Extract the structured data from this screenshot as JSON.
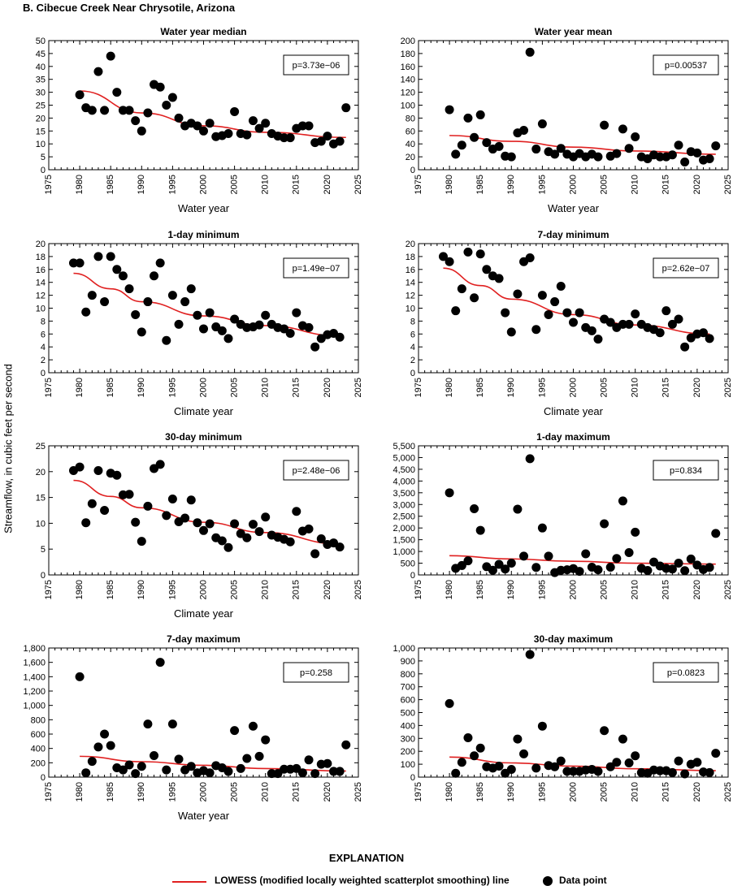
{
  "figure_title": "B. Cibecue Creek Near Chrysotile, Arizona",
  "shared_ylabel": "Streamflow, in cubic feet per second",
  "explanation": {
    "title": "EXPLANATION",
    "line_label": "LOWESS (modified locally weighted scatterplot smoothing) line",
    "point_label": "Data point",
    "line_color": "#e02020",
    "point_color": "#000000"
  },
  "chart_data": [
    {
      "type": "scatter",
      "title": "Water year median",
      "xlabel": "Water year",
      "ylabel": "",
      "xlim": [
        1975,
        2025
      ],
      "ylim": [
        0,
        50
      ],
      "xticks": [
        1975,
        1980,
        1985,
        1990,
        1995,
        2000,
        2005,
        2010,
        2015,
        2020,
        2025
      ],
      "yticks": [
        0,
        5,
        10,
        15,
        20,
        25,
        30,
        35,
        40,
        45,
        50
      ],
      "ytick_labels": [
        "0",
        "5",
        "10",
        "15",
        "20",
        "25",
        "30",
        "35",
        "40",
        "45",
        "50"
      ],
      "p_label": "p=3.73e−06",
      "points": {
        "x": [
          1980,
          1981,
          1982,
          1983,
          1984,
          1985,
          1986,
          1987,
          1988,
          1989,
          1990,
          1991,
          1992,
          1993,
          1994,
          1995,
          1996,
          1997,
          1998,
          1999,
          2000,
          2001,
          2002,
          2003,
          2004,
          2005,
          2006,
          2007,
          2008,
          2009,
          2010,
          2011,
          2012,
          2013,
          2014,
          2015,
          2016,
          2017,
          2018,
          2019,
          2020,
          2021,
          2022,
          2023
        ],
        "y": [
          29,
          24,
          23,
          38,
          23,
          44,
          30,
          23,
          23,
          19,
          15,
          22,
          33,
          32,
          25,
          28,
          20,
          17,
          18,
          17,
          15,
          18,
          12.8,
          13.2,
          14,
          22.5,
          14,
          13.5,
          19,
          16,
          18,
          14,
          13,
          12.4,
          12.4,
          16,
          17,
          17,
          10.5,
          11,
          13,
          10,
          11,
          24
        ]
      },
      "lowess": {
        "x": [
          1980,
          1990,
          2000,
          2010,
          2023
        ],
        "y": [
          30.5,
          22,
          17,
          14.5,
          12.5
        ]
      }
    },
    {
      "type": "scatter",
      "title": "Water year mean",
      "xlabel": "Water year",
      "ylabel": "",
      "xlim": [
        1975,
        2025
      ],
      "ylim": [
        0,
        200
      ],
      "xticks": [
        1975,
        1980,
        1985,
        1990,
        1995,
        2000,
        2005,
        2010,
        2015,
        2020,
        2025
      ],
      "yticks": [
        0,
        20,
        40,
        60,
        80,
        100,
        120,
        140,
        160,
        180,
        200
      ],
      "ytick_labels": [
        "0",
        "20",
        "40",
        "60",
        "80",
        "100",
        "120",
        "140",
        "160",
        "180",
        "200"
      ],
      "p_label": "p=0.00537",
      "points": {
        "x": [
          1980,
          1981,
          1982,
          1983,
          1984,
          1985,
          1986,
          1987,
          1988,
          1989,
          1990,
          1991,
          1992,
          1993,
          1994,
          1995,
          1996,
          1997,
          1998,
          1999,
          2000,
          2001,
          2002,
          2003,
          2004,
          2005,
          2006,
          2007,
          2008,
          2009,
          2010,
          2011,
          2012,
          2013,
          2014,
          2015,
          2016,
          2017,
          2018,
          2019,
          2020,
          2021,
          2022,
          2023
        ],
        "y": [
          93,
          24,
          38,
          80,
          50,
          85,
          42,
          32,
          36,
          21,
          20,
          57,
          61,
          182,
          32,
          71,
          28,
          24,
          33,
          24,
          20,
          25,
          20,
          24,
          20,
          69,
          21,
          25,
          63,
          33,
          51,
          20,
          17,
          23,
          20,
          20,
          23,
          38,
          12,
          28,
          26,
          15,
          17,
          37
        ]
      },
      "lowess": {
        "x": [
          1980,
          1990,
          2000,
          2010,
          2023
        ],
        "y": [
          53,
          44,
          35,
          29,
          24
        ]
      }
    },
    {
      "type": "scatter",
      "title": "1-day minimum",
      "xlabel": "Climate year",
      "ylabel": "",
      "xlim": [
        1975,
        2025
      ],
      "ylim": [
        0,
        20
      ],
      "xticks": [
        1975,
        1980,
        1985,
        1990,
        1995,
        2000,
        2005,
        2010,
        2015,
        2020,
        2025
      ],
      "yticks": [
        0,
        2,
        4,
        6,
        8,
        10,
        12,
        14,
        16,
        18,
        20
      ],
      "ytick_labels": [
        "0",
        "2",
        "4",
        "6",
        "8",
        "10",
        "12",
        "14",
        "16",
        "18",
        "20"
      ],
      "p_label": "p=1.49e−07",
      "points": {
        "x": [
          1979,
          1980,
          1981,
          1982,
          1983,
          1984,
          1985,
          1986,
          1987,
          1988,
          1989,
          1990,
          1991,
          1992,
          1993,
          1994,
          1995,
          1996,
          1997,
          1998,
          1999,
          2000,
          2001,
          2002,
          2003,
          2004,
          2005,
          2006,
          2007,
          2008,
          2009,
          2010,
          2011,
          2012,
          2013,
          2014,
          2015,
          2016,
          2017,
          2018,
          2019,
          2020,
          2021,
          2022
        ],
        "y": [
          17,
          17,
          9.4,
          12,
          18,
          11,
          18,
          16,
          15,
          13,
          9,
          6.3,
          11,
          15,
          17,
          5,
          12,
          7.5,
          11,
          13,
          8.9,
          6.8,
          9.3,
          7.1,
          6.5,
          5.3,
          8.3,
          7.5,
          7,
          7.1,
          7.4,
          8.9,
          7.5,
          7,
          6.8,
          6.1,
          9.3,
          7.3,
          7,
          4,
          5.3,
          5.9,
          6.1,
          5.5
        ]
      },
      "lowess": {
        "x": [
          1979,
          1985,
          1990,
          2000,
          2010,
          2022
        ],
        "y": [
          15.4,
          13,
          11,
          8.8,
          7.3,
          5.7
        ]
      }
    },
    {
      "type": "scatter",
      "title": "7-day minimum",
      "xlabel": "Climate year",
      "ylabel": "",
      "xlim": [
        1975,
        2025
      ],
      "ylim": [
        0,
        20
      ],
      "xticks": [
        1975,
        1980,
        1985,
        1990,
        1995,
        2000,
        2005,
        2010,
        2015,
        2020,
        2025
      ],
      "yticks": [
        0,
        2,
        4,
        6,
        8,
        10,
        12,
        14,
        16,
        18,
        20
      ],
      "ytick_labels": [
        "0",
        "2",
        "4",
        "6",
        "8",
        "10",
        "12",
        "14",
        "16",
        "18",
        "20"
      ],
      "p_label": "p=2.62e−07",
      "points": {
        "x": [
          1979,
          1980,
          1981,
          1982,
          1983,
          1984,
          1985,
          1986,
          1987,
          1988,
          1989,
          1990,
          1991,
          1992,
          1993,
          1994,
          1995,
          1996,
          1997,
          1998,
          1999,
          2000,
          2001,
          2002,
          2003,
          2004,
          2005,
          2006,
          2007,
          2008,
          2009,
          2010,
          2011,
          2012,
          2013,
          2014,
          2015,
          2016,
          2017,
          2018,
          2019,
          2020,
          2021,
          2022
        ],
        "y": [
          18,
          17.2,
          9.6,
          13,
          18.7,
          11.6,
          18.4,
          16,
          15,
          14.6,
          9.3,
          6.3,
          12.2,
          17.2,
          17.8,
          6.7,
          12,
          9,
          11,
          13.4,
          9.3,
          7.8,
          9.3,
          7,
          6.5,
          5.2,
          8.3,
          7.8,
          7,
          7.5,
          7.5,
          9.1,
          7.5,
          7,
          6.7,
          6.2,
          9.6,
          7.5,
          8.3,
          4,
          5.4,
          6,
          6.2,
          5.3
        ]
      },
      "lowess": {
        "x": [
          1979,
          1985,
          1990,
          2000,
          2010,
          2022
        ],
        "y": [
          16.2,
          13.5,
          11.4,
          9,
          7.4,
          6
        ]
      }
    },
    {
      "type": "scatter",
      "title": "30-day minimum",
      "xlabel": "Climate year",
      "ylabel": "",
      "xlim": [
        1975,
        2025
      ],
      "ylim": [
        0,
        25
      ],
      "xticks": [
        1975,
        1980,
        1985,
        1990,
        1995,
        2000,
        2005,
        2010,
        2015,
        2020,
        2025
      ],
      "yticks": [
        0,
        5,
        10,
        15,
        20,
        25
      ],
      "ytick_labels": [
        "0",
        "5",
        "10",
        "15",
        "20",
        "25"
      ],
      "p_label": "p=2.48e−06",
      "points": {
        "x": [
          1979,
          1980,
          1981,
          1982,
          1983,
          1984,
          1985,
          1986,
          1987,
          1988,
          1989,
          1990,
          1991,
          1992,
          1993,
          1994,
          1995,
          1996,
          1997,
          1998,
          1999,
          2000,
          2001,
          2002,
          2003,
          2004,
          2005,
          2006,
          2007,
          2008,
          2009,
          2010,
          2011,
          2012,
          2013,
          2014,
          2015,
          2016,
          2017,
          2018,
          2019,
          2020,
          2021,
          2022
        ],
        "y": [
          20.2,
          20.9,
          10.1,
          13.8,
          20.2,
          12.5,
          19.7,
          19.3,
          15.5,
          15.6,
          10.2,
          6.5,
          13.3,
          20.6,
          21.4,
          11.5,
          14.7,
          10.3,
          11,
          14.5,
          10.1,
          8.6,
          9.9,
          7.2,
          6.6,
          5.3,
          9.9,
          8,
          7.2,
          9.8,
          8.4,
          11.2,
          7.7,
          7.3,
          6.9,
          6.4,
          12.3,
          8.5,
          8.9,
          4.1,
          7,
          5.9,
          6.2,
          5.4
        ]
      },
      "lowess": {
        "x": [
          1979,
          1985,
          1990,
          2000,
          2010,
          2022
        ],
        "y": [
          18.3,
          15.2,
          13,
          10.2,
          8.2,
          6
        ]
      }
    },
    {
      "type": "scatter",
      "title": "1-day maximum",
      "xlabel": "",
      "ylabel": "",
      "xlim": [
        1975,
        2025
      ],
      "ylim": [
        0,
        5500
      ],
      "xticks": [
        1975,
        1980,
        1985,
        1990,
        1995,
        2000,
        2005,
        2010,
        2015,
        2020,
        2025
      ],
      "yticks": [
        0,
        500,
        1000,
        1500,
        2000,
        2500,
        3000,
        3500,
        4000,
        4500,
        5000,
        5500
      ],
      "ytick_labels": [
        "0",
        "500",
        "1,000",
        "1,500",
        "2,000",
        "2,500",
        "3,000",
        "3,500",
        "4,000",
        "4,500",
        "5,000",
        "5,500"
      ],
      "p_label": "p=0.834",
      "points": {
        "x": [
          1980,
          1981,
          1982,
          1983,
          1984,
          1985,
          1986,
          1987,
          1988,
          1989,
          1990,
          1991,
          1992,
          1993,
          1994,
          1995,
          1996,
          1997,
          1998,
          1999,
          2000,
          2001,
          2002,
          2003,
          2004,
          2005,
          2006,
          2007,
          2008,
          2009,
          2010,
          2011,
          2012,
          2013,
          2014,
          2015,
          2016,
          2017,
          2018,
          2019,
          2020,
          2021,
          2022,
          2023
        ],
        "y": [
          3500,
          280,
          400,
          600,
          2820,
          1900,
          350,
          200,
          450,
          250,
          500,
          2800,
          800,
          4950,
          320,
          2000,
          800,
          100,
          200,
          220,
          270,
          150,
          900,
          330,
          220,
          2180,
          330,
          700,
          3150,
          950,
          1820,
          280,
          190,
          550,
          380,
          280,
          250,
          500,
          180,
          680,
          420,
          230,
          320,
          1770
        ]
      },
      "lowess": {
        "x": [
          1980,
          1990,
          2000,
          2010,
          2023
        ],
        "y": [
          820,
          680,
          580,
          500,
          460
        ]
      }
    },
    {
      "type": "scatter",
      "title": "7-day maximum",
      "xlabel": "Water year",
      "ylabel": "",
      "xlim": [
        1975,
        2025
      ],
      "ylim": [
        0,
        1800
      ],
      "xticks": [
        1975,
        1980,
        1985,
        1990,
        1995,
        2000,
        2005,
        2010,
        2015,
        2020,
        2025
      ],
      "yticks": [
        0,
        200,
        400,
        600,
        800,
        1000,
        1200,
        1400,
        1600,
        1800
      ],
      "ytick_labels": [
        "0",
        "200",
        "400",
        "600",
        "800",
        "1,000",
        "1,200",
        "1,400",
        "1,600",
        "1,800"
      ],
      "p_label": "p=0.258",
      "points": {
        "x": [
          1980,
          1981,
          1982,
          1983,
          1984,
          1985,
          1986,
          1987,
          1988,
          1989,
          1990,
          1991,
          1992,
          1993,
          1994,
          1995,
          1996,
          1997,
          1998,
          1999,
          2000,
          2001,
          2002,
          2003,
          2004,
          2005,
          2006,
          2007,
          2008,
          2009,
          2010,
          2011,
          2012,
          2013,
          2014,
          2015,
          2016,
          2017,
          2018,
          2019,
          2020,
          2021,
          2022,
          2023
        ],
        "y": [
          1400,
          60,
          220,
          420,
          600,
          440,
          130,
          100,
          170,
          50,
          150,
          740,
          300,
          1600,
          100,
          740,
          250,
          100,
          150,
          60,
          90,
          60,
          160,
          130,
          80,
          650,
          120,
          260,
          710,
          290,
          520,
          50,
          50,
          110,
          110,
          120,
          60,
          240,
          50,
          180,
          190,
          80,
          80,
          450
        ]
      },
      "lowess": {
        "x": [
          1980,
          1990,
          2000,
          2010,
          2023
        ],
        "y": [
          290,
          215,
          165,
          120,
          85
        ]
      }
    },
    {
      "type": "scatter",
      "title": "30-day maximum",
      "xlabel": "",
      "ylabel": "",
      "xlim": [
        1975,
        2025
      ],
      "ylim": [
        0,
        1000
      ],
      "xticks": [
        1975,
        1980,
        1985,
        1990,
        1995,
        2000,
        2005,
        2010,
        2015,
        2020,
        2025
      ],
      "yticks": [
        0,
        100,
        200,
        300,
        400,
        500,
        600,
        700,
        800,
        900,
        1000
      ],
      "ytick_labels": [
        "0",
        "100",
        "200",
        "300",
        "400",
        "500",
        "600",
        "700",
        "800",
        "900",
        "1,000"
      ],
      "p_label": "p=0.0823",
      "points": {
        "x": [
          1980,
          1981,
          1982,
          1983,
          1984,
          1985,
          1986,
          1987,
          1988,
          1989,
          1990,
          1991,
          1992,
          1993,
          1994,
          1995,
          1996,
          1997,
          1998,
          1999,
          2000,
          2001,
          2002,
          2003,
          2004,
          2005,
          2006,
          2007,
          2008,
          2009,
          2010,
          2011,
          2012,
          2013,
          2014,
          2015,
          2016,
          2017,
          2018,
          2019,
          2020,
          2021,
          2022,
          2023
        ],
        "y": [
          570,
          30,
          115,
          305,
          165,
          225,
          80,
          70,
          85,
          30,
          60,
          295,
          180,
          950,
          70,
          395,
          90,
          80,
          125,
          45,
          45,
          45,
          55,
          60,
          45,
          360,
          80,
          115,
          295,
          110,
          165,
          35,
          30,
          55,
          50,
          50,
          35,
          125,
          25,
          100,
          115,
          40,
          35,
          185
        ]
      },
      "lowess": {
        "x": [
          1980,
          1990,
          2000,
          2010,
          2023
        ],
        "y": [
          155,
          110,
          85,
          65,
          50
        ]
      }
    }
  ]
}
